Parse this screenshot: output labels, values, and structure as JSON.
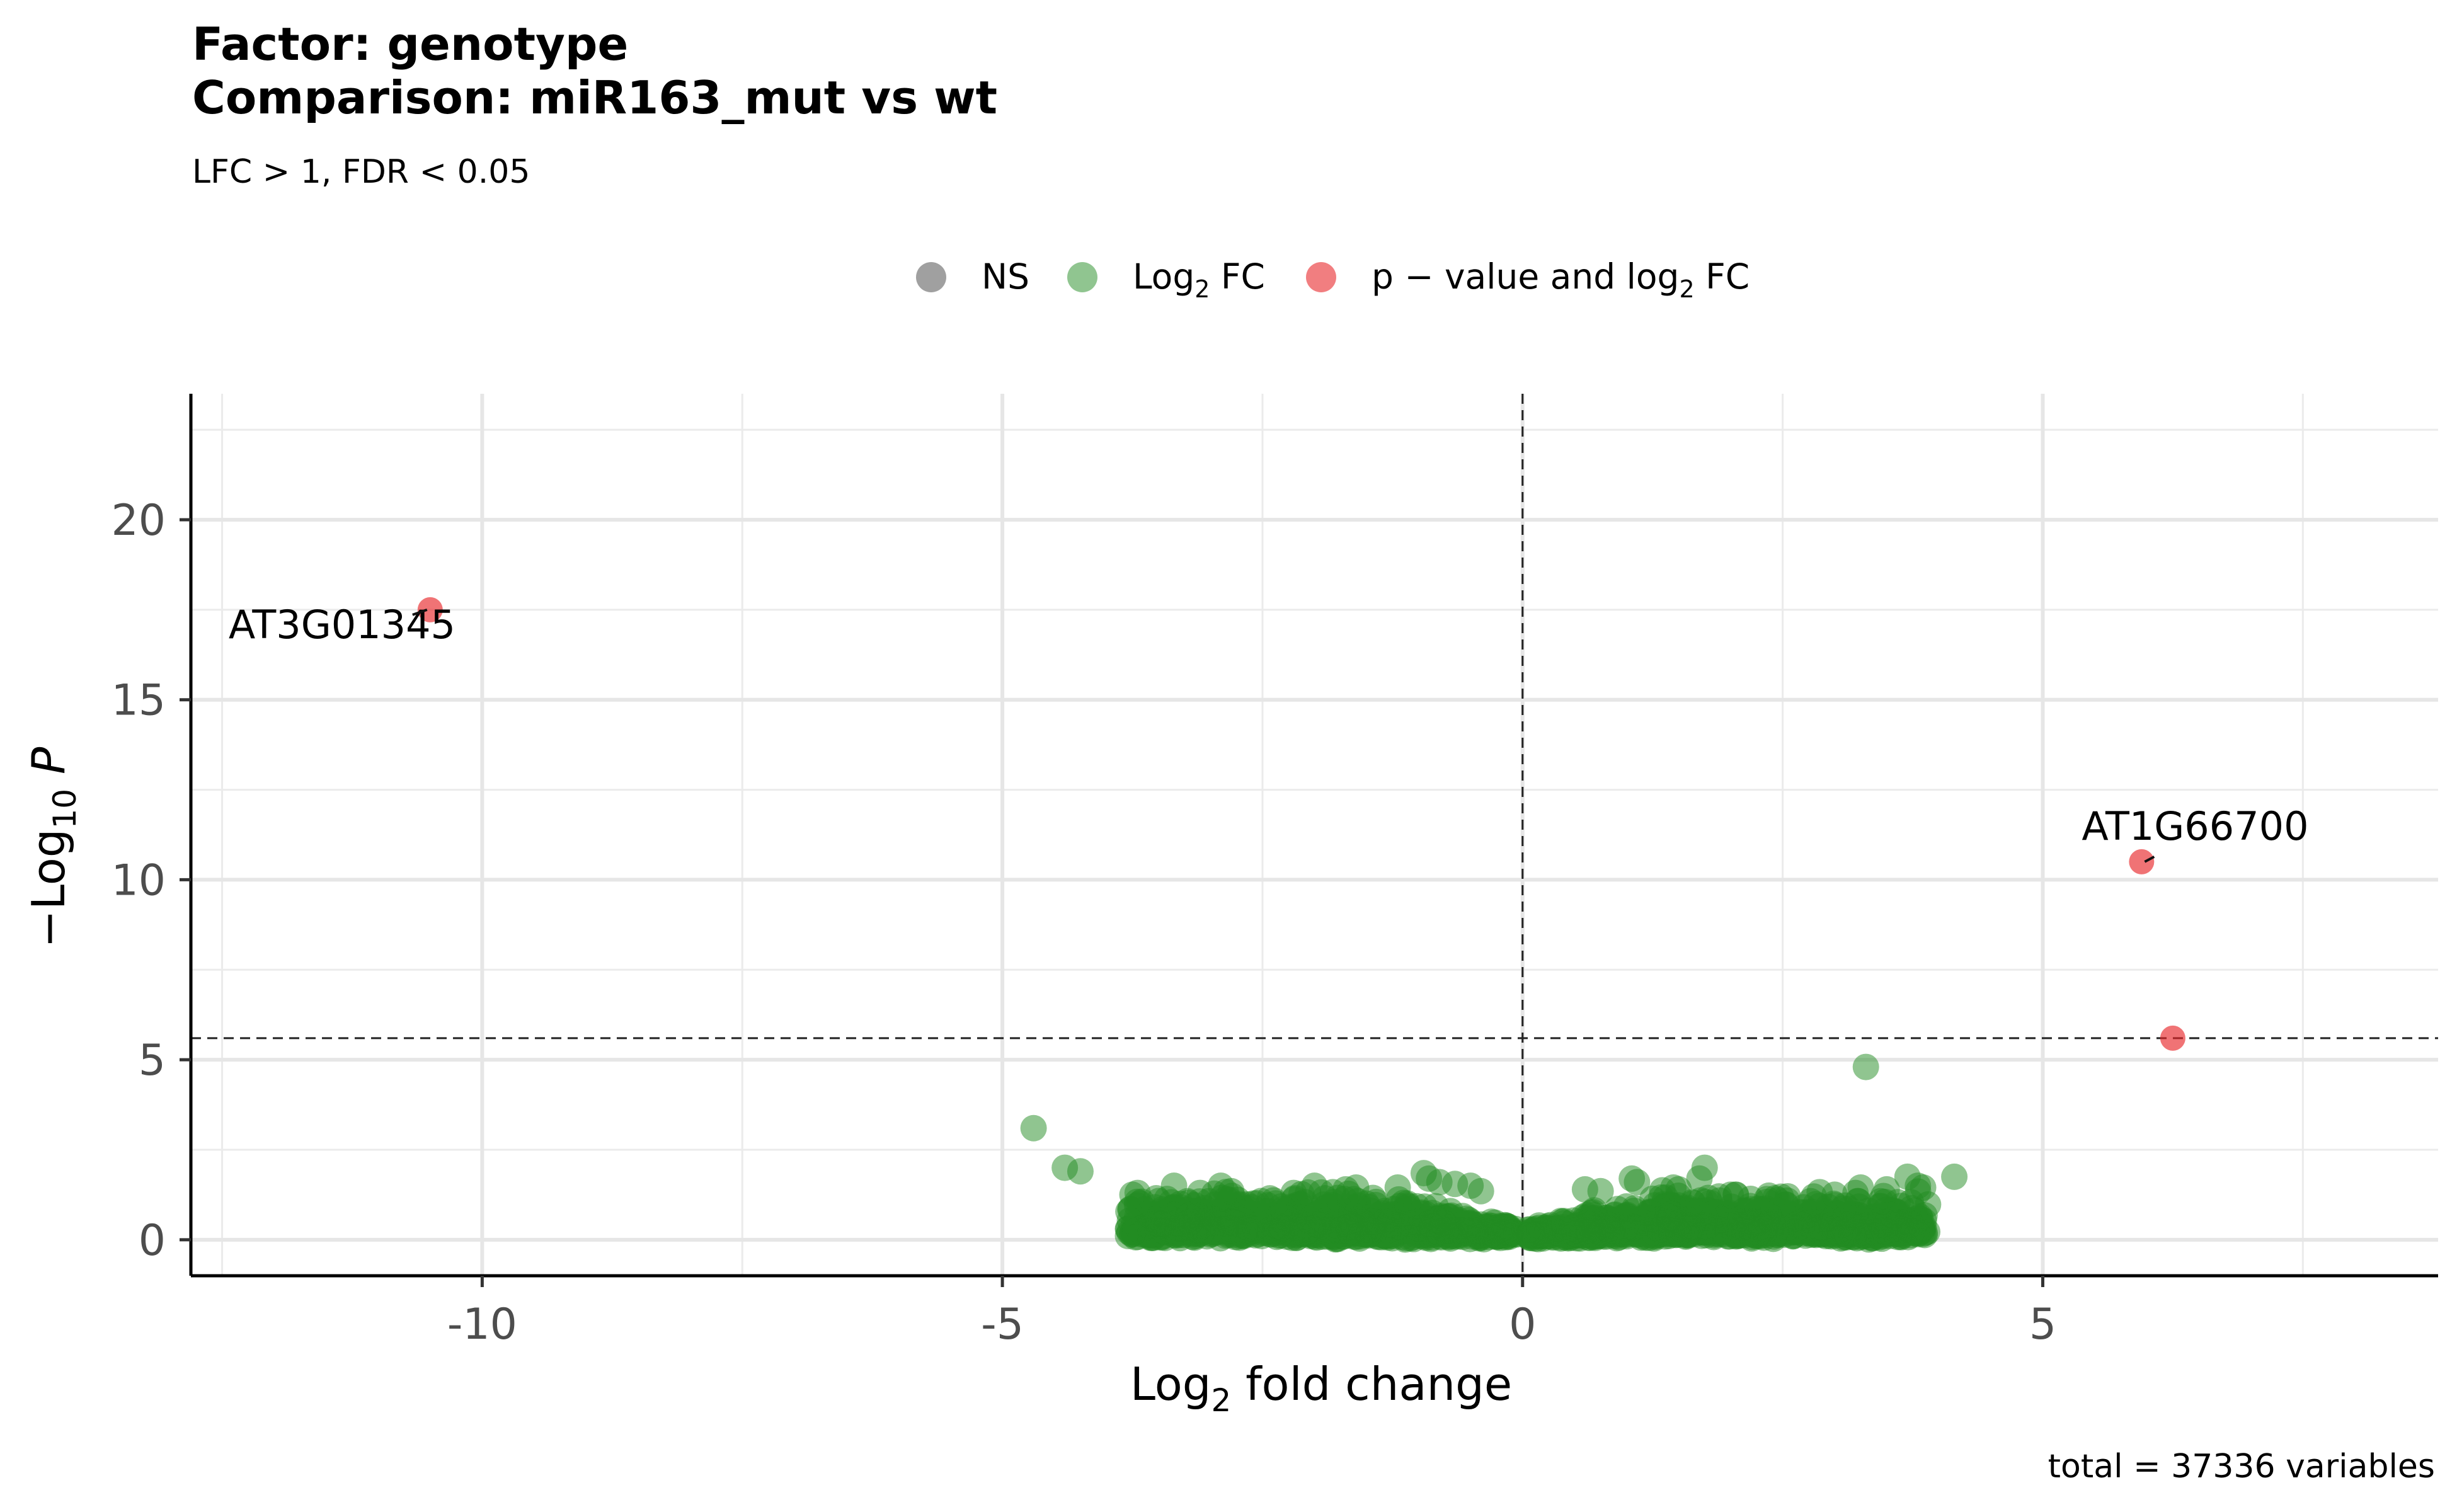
{
  "chart_data": {
    "type": "scatter",
    "title_line1": "Factor: genotype",
    "title_line2": "Comparison: miR163_mut vs wt",
    "subtitle": "LFC > 1, FDR < 0.05",
    "caption": "total = 37336 variables",
    "xlabel_main": "Log",
    "xlabel_sub": "2",
    "xlabel_tail": " fold change",
    "ylabel_prefix": "−Log",
    "ylabel_sub": "10",
    "ylabel_tail": " P",
    "xlim": [
      -12.8,
      8.8
    ],
    "ylim": [
      -1.0,
      23.5
    ],
    "x_ticks": [
      -10,
      -5,
      0,
      5
    ],
    "x_tick_labels": [
      "-10",
      "-5",
      "0",
      "5"
    ],
    "y_ticks": [
      0,
      5,
      10,
      15,
      20
    ],
    "y_tick_labels": [
      "0",
      "5",
      "10",
      "15",
      "20"
    ],
    "grid": true,
    "legend_position": "top",
    "legend": [
      {
        "label": "NS",
        "color": "#808080"
      },
      {
        "label_main": "Log",
        "label_sub": "2",
        "label_tail": " FC",
        "color": "#228B22"
      },
      {
        "label_main": "p − value and log",
        "label_sub": "2",
        "label_tail": " FC",
        "color": "#E8282B"
      }
    ],
    "cutoffs": {
      "log2fc": 0,
      "neglog10p": 5.6
    },
    "colors": {
      "ns": "#808080",
      "fc": "#228B22",
      "both": "#E8282B"
    },
    "series": [
      {
        "name": "p − value and log2 FC",
        "color": "#E8282B",
        "points": [
          [
            -10.5,
            17.5
          ],
          [
            5.95,
            10.5
          ],
          [
            6.25,
            5.6
          ]
        ]
      },
      {
        "name": "Log2 FC",
        "color": "#228B22",
        "points": [
          [
            -4.7,
            3.1
          ],
          [
            -4.4,
            2.0
          ],
          [
            -4.25,
            1.9
          ],
          [
            3.3,
            4.8
          ],
          [
            4.15,
            1.75
          ],
          [
            3.7,
            1.75
          ],
          [
            3.8,
            1.5
          ],
          [
            3.85,
            1.45
          ],
          [
            1.75,
            2.0
          ],
          [
            1.7,
            1.7
          ],
          [
            -3.5,
            0.45
          ],
          [
            3.7,
            0.5
          ],
          [
            2.5,
            0.3
          ],
          [
            -0.95,
            1.85
          ],
          [
            -0.9,
            1.7
          ],
          [
            -0.8,
            1.6
          ],
          [
            -0.65,
            1.55
          ],
          [
            -0.5,
            1.5
          ],
          [
            1.05,
            1.7
          ],
          [
            1.1,
            1.6
          ],
          [
            1.45,
            1.45
          ],
          [
            1.5,
            1.4
          ],
          [
            -1.7,
            1.4
          ],
          [
            -1.6,
            1.45
          ],
          [
            -2.0,
            1.5
          ],
          [
            -2.9,
            1.5
          ],
          [
            -2.8,
            1.35
          ],
          [
            -3.35,
            1.5
          ],
          [
            -3.7,
            1.3
          ],
          [
            -3.75,
            1.25
          ],
          [
            2.35,
            1.05
          ],
          [
            2.8,
            1.2
          ],
          [
            3.0,
            1.25
          ],
          [
            3.2,
            1.3
          ],
          [
            3.25,
            1.45
          ],
          [
            3.5,
            1.4
          ],
          [
            -3.1,
            1.3
          ],
          [
            -2.2,
            1.3
          ],
          [
            -1.2,
            1.45
          ],
          [
            -0.4,
            1.35
          ],
          [
            0.6,
            1.4
          ],
          [
            0.75,
            1.35
          ],
          [
            2.0,
            1.25
          ],
          [
            2.45,
            1.1
          ],
          [
            2.7,
            0.9
          ],
          [
            3.1,
            0.95
          ],
          [
            -2.6,
            0.9
          ],
          [
            -2.3,
            0.85
          ],
          [
            -1.9,
            1.15
          ],
          [
            -2.05,
            0.55
          ],
          [
            1.3,
            0.55
          ],
          [
            2.1,
            0.6
          ],
          [
            -0.3,
            0.5
          ]
        ]
      }
    ],
    "cloud": [
      {
        "x_from": -3.8,
        "x_to": -0.05,
        "y_peak_min": 0.3,
        "y_spread": 1.0
      },
      {
        "x_from": 0.05,
        "x_to": 3.9,
        "y_peak_min": 0.3,
        "y_spread": 1.0
      }
    ],
    "labels": [
      {
        "text": "AT3G01345",
        "x": -10.5,
        "y": 17.5,
        "anchor_to": [
          -10.5,
          17.5
        ]
      },
      {
        "text": "AT1G66700",
        "x": 5.95,
        "y": 10.5,
        "anchor_to": [
          5.95,
          10.5
        ]
      }
    ]
  }
}
